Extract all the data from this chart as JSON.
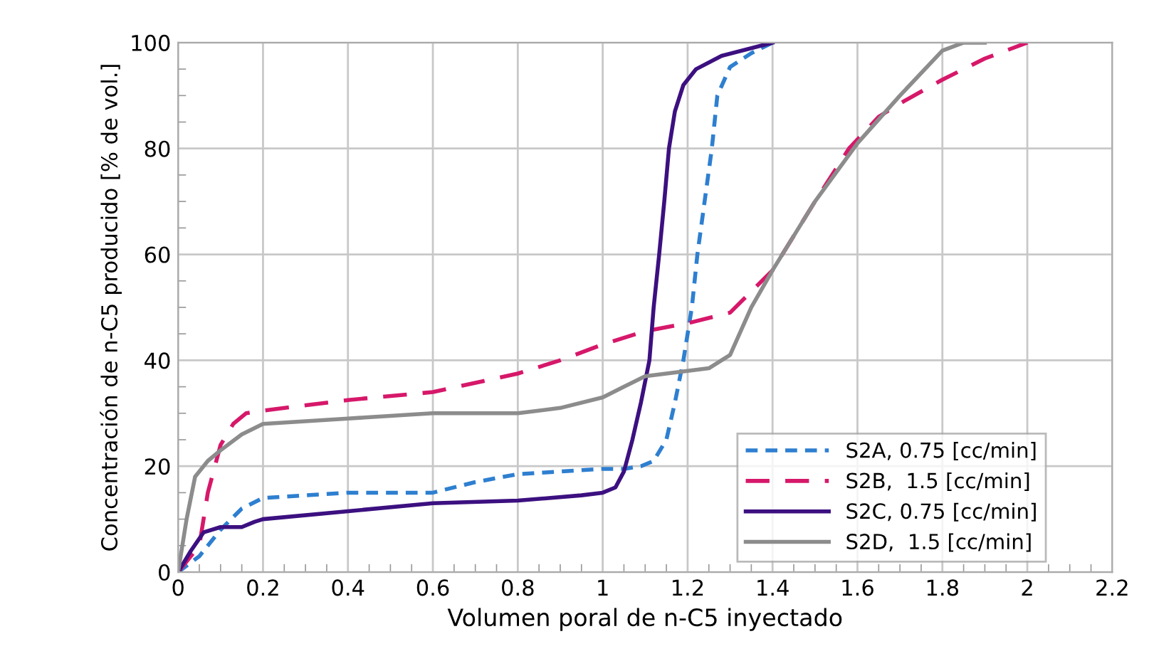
{
  "chart_data": {
    "type": "line",
    "xlabel": "Volumen poral de n-C5 inyectado",
    "ylabel": "Concentración de n-C5 producido [% de vol.]",
    "xlim": [
      0,
      2.2
    ],
    "xticks": [
      0,
      0.2,
      0.4,
      0.6,
      0.8,
      1,
      1.2,
      1.4,
      1.6,
      1.8,
      2,
      2.2
    ],
    "ylim": [
      0,
      100
    ],
    "yticks": [
      0,
      20,
      40,
      60,
      80,
      100
    ],
    "grid": true,
    "legend": "bottom right",
    "series": [
      {
        "name": "S2A, 0.75 [cc/min]",
        "color": "#2e7fd0",
        "line_style": "dotted",
        "x": [
          0,
          0.05,
          0.1,
          0.15,
          0.2,
          0.3,
          0.4,
          0.5,
          0.6,
          0.7,
          0.8,
          0.9,
          1.0,
          1.05,
          1.09,
          1.12,
          1.15,
          1.17,
          1.19,
          1.21,
          1.223,
          1.24,
          1.257,
          1.27,
          1.3,
          1.35,
          1.4
        ],
        "values": [
          0,
          3,
          8,
          12,
          14,
          14.5,
          15,
          15,
          15,
          17,
          18.5,
          19,
          19.5,
          19.5,
          20,
          21,
          25,
          32,
          40,
          50,
          60,
          70,
          80,
          90,
          95.4,
          98,
          100
        ]
      },
      {
        "name": "S2B,  1.5 [cc/min]",
        "color": "#d6186a",
        "line_style": "dashed",
        "x": [
          0,
          0.05,
          0.07,
          0.1,
          0.13,
          0.16,
          0.2,
          0.4,
          0.6,
          0.8,
          0.9,
          1.0,
          1.1,
          1.2,
          1.3,
          1.35,
          1.4,
          1.5,
          1.58,
          1.65,
          1.7,
          1.8,
          1.9,
          2.0
        ],
        "values": [
          0,
          5,
          15,
          24,
          28,
          30,
          30.5,
          32.5,
          34,
          37.5,
          40,
          43,
          45.5,
          47,
          49,
          53,
          57,
          70,
          80,
          86,
          88.5,
          93,
          97,
          100
        ]
      },
      {
        "name": "S2C, 0.75 [cc/min]",
        "color": "#3c1080",
        "line_style": "solid",
        "x": [
          0,
          0.03,
          0.06,
          0.1,
          0.15,
          0.18,
          0.2,
          0.4,
          0.6,
          0.8,
          0.95,
          1.0,
          1.03,
          1.05,
          1.07,
          1.09,
          1.11,
          1.12,
          1.133,
          1.145,
          1.156,
          1.17,
          1.19,
          1.22,
          1.28,
          1.4
        ],
        "values": [
          0,
          4,
          7.5,
          8.5,
          8.5,
          9.5,
          10,
          11.5,
          13,
          13.5,
          14.5,
          15,
          16,
          19,
          25,
          32,
          40,
          50,
          60,
          70,
          80,
          87,
          92,
          95,
          97.5,
          100
        ]
      },
      {
        "name": "S2D,  1.5 [cc/min]",
        "color": "#8c8c8c",
        "line_style": "solid",
        "x": [
          0,
          0.02,
          0.04,
          0.07,
          0.1,
          0.15,
          0.2,
          0.4,
          0.6,
          0.8,
          0.9,
          1.0,
          1.05,
          1.1,
          1.2,
          1.25,
          1.3,
          1.35,
          1.4,
          1.5,
          1.6,
          1.7,
          1.8,
          1.85,
          1.9
        ],
        "values": [
          0,
          10,
          18,
          21,
          23,
          26,
          28,
          29,
          30,
          30,
          31,
          33,
          35,
          37,
          38,
          38.5,
          41,
          50,
          57,
          70,
          81,
          90,
          98.5,
          100,
          100
        ]
      }
    ]
  }
}
